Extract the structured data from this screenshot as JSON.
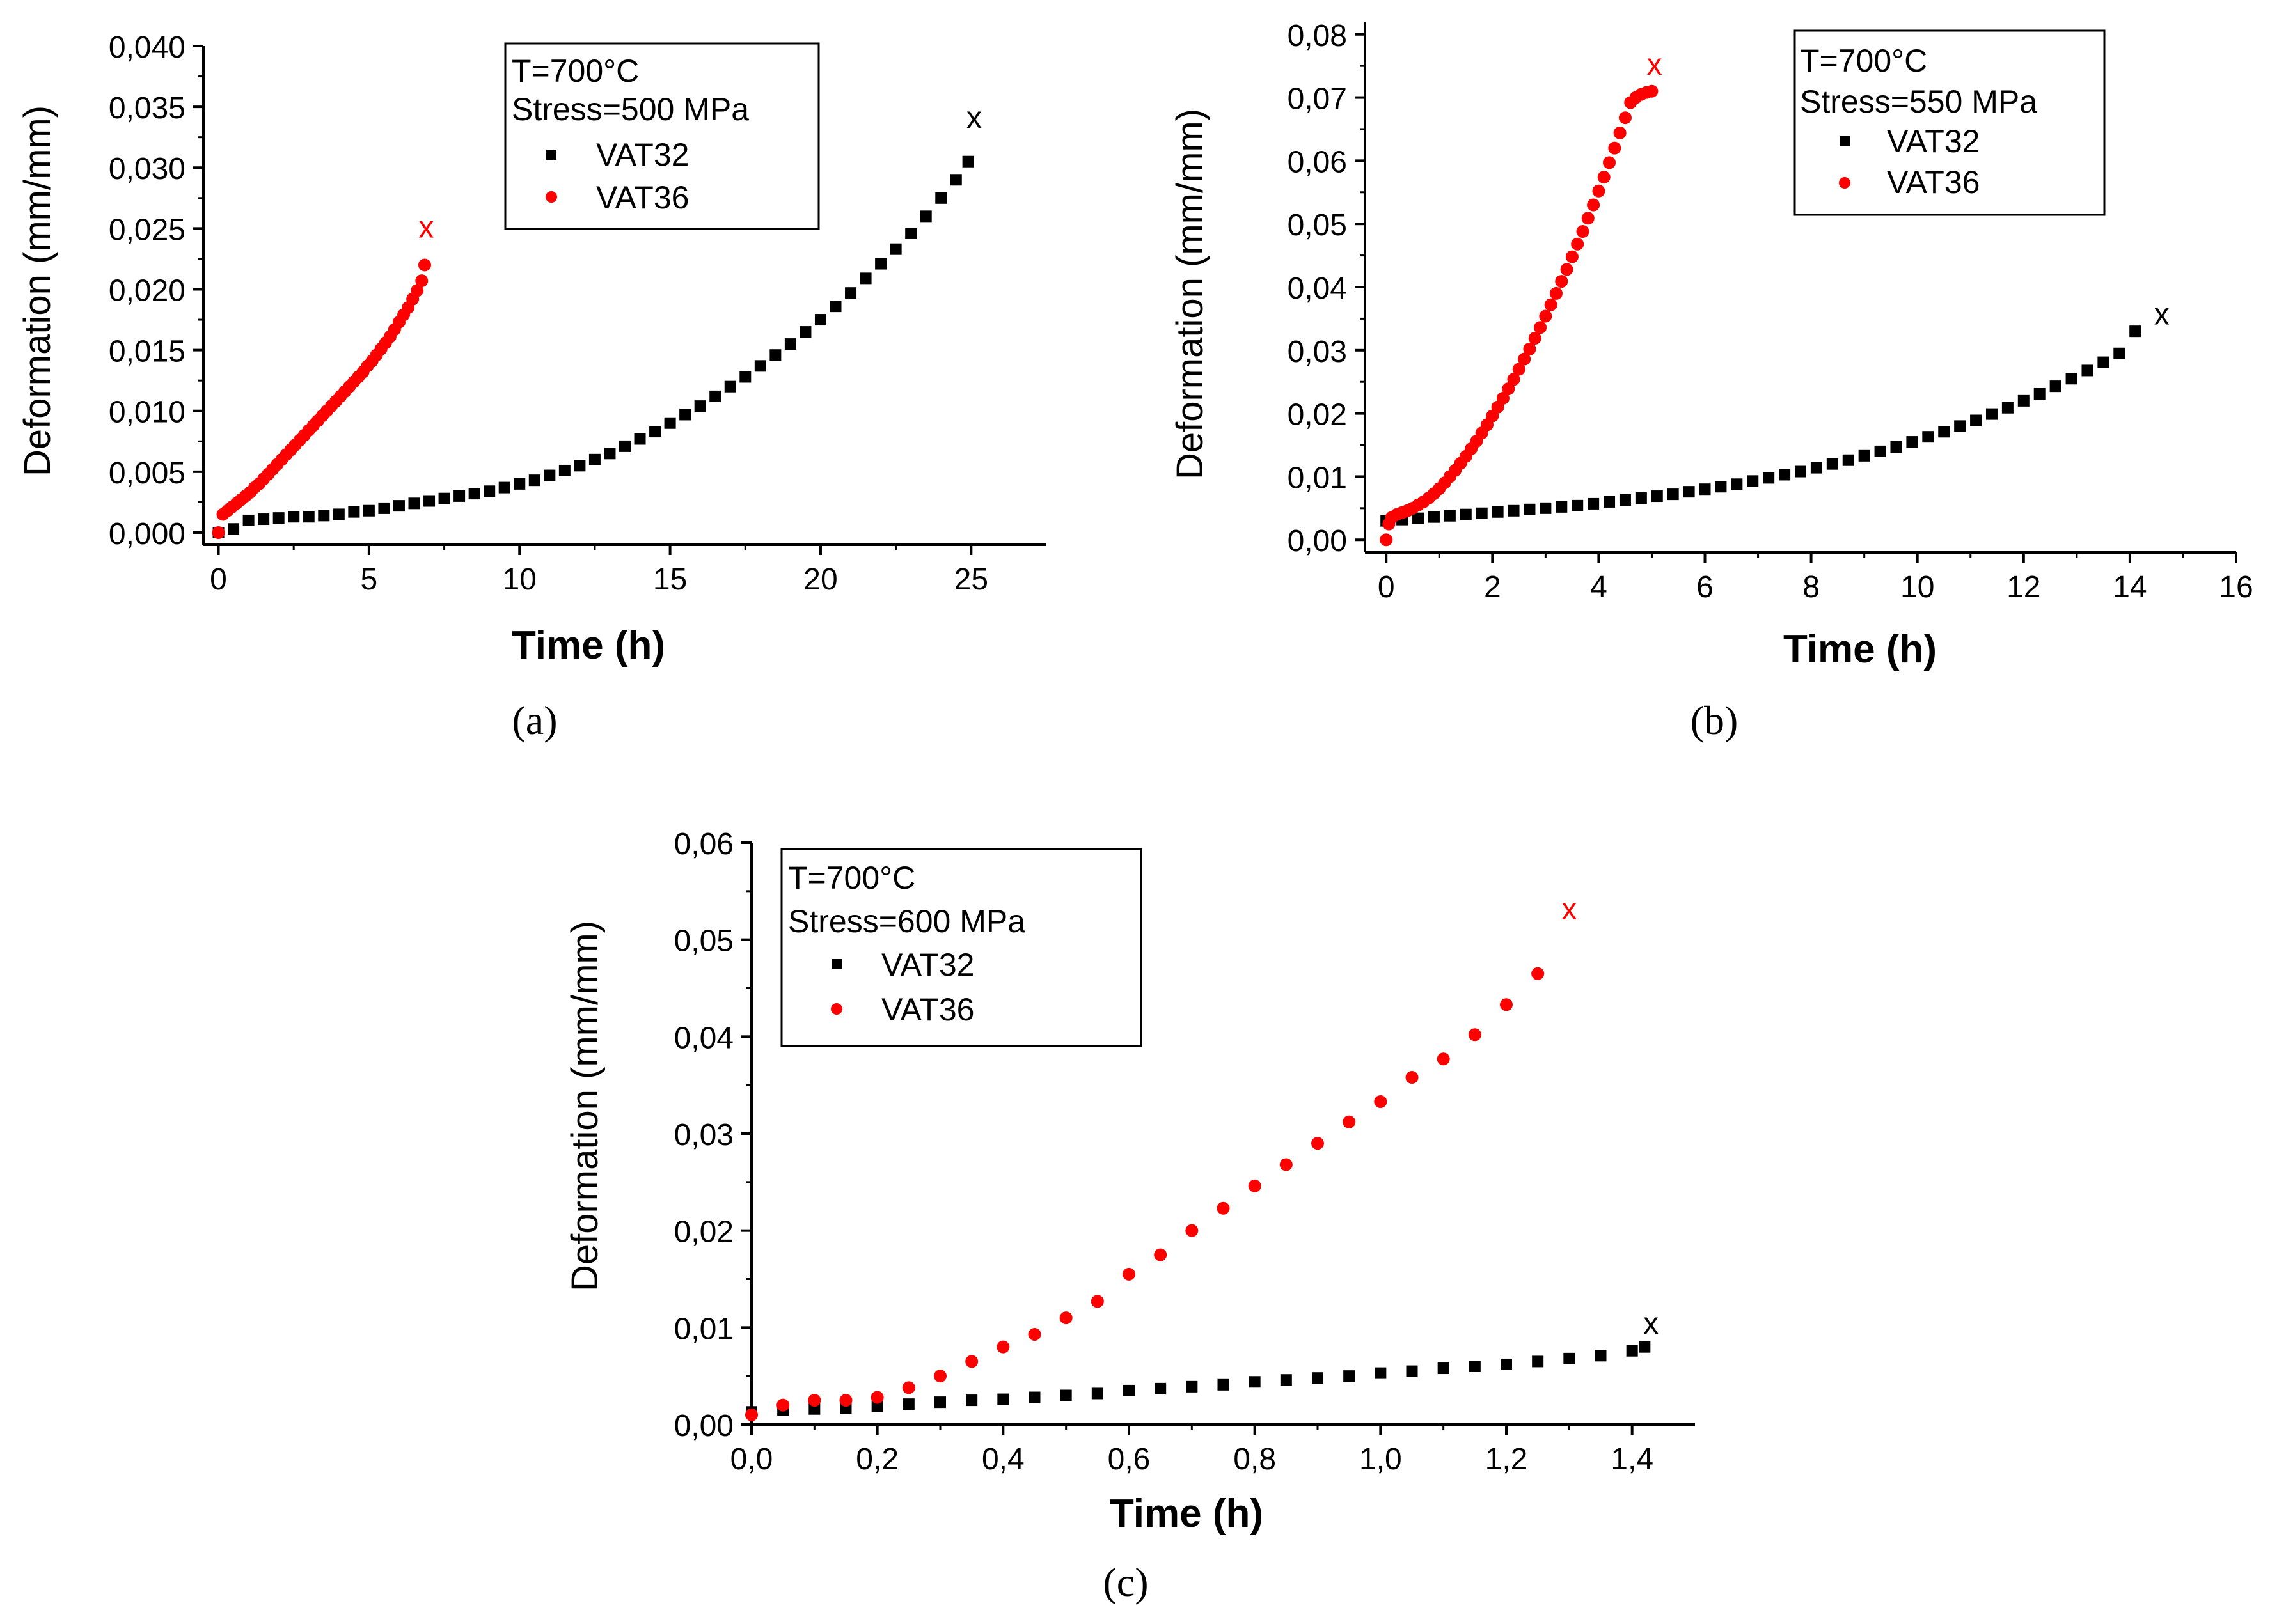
{
  "chart_data": [
    {
      "type": "scatter",
      "panel_label": "(a)",
      "xlabel": "Time (h)",
      "ylabel": "Deformation (mm/mm)",
      "xlim": [
        -0.5,
        27.5
      ],
      "ylim": [
        -0.001,
        0.04
      ],
      "xticks": [
        0,
        5,
        10,
        15,
        20,
        25
      ],
      "xtick_labels": [
        "0",
        "5",
        "10",
        "15",
        "20",
        "25"
      ],
      "yticks": [
        0.0,
        0.005,
        0.01,
        0.015,
        0.02,
        0.025,
        0.03,
        0.035,
        0.04
      ],
      "ytick_labels": [
        "0,000",
        "0,005",
        "0,010",
        "0,015",
        "0,020",
        "0,025",
        "0,030",
        "0,035",
        "0,040"
      ],
      "legend": {
        "title_lines": [
          "T=700°C",
          "Stress=500 MPa"
        ],
        "position": "top-center"
      },
      "series": [
        {
          "name": "VAT32",
          "color": "#000000",
          "marker": "square",
          "rupture": {
            "x": 25.1,
            "y": 0.034
          },
          "x": [
            0,
            0.5,
            1,
            1.5,
            2,
            2.5,
            3,
            3.5,
            4,
            4.5,
            5,
            5.5,
            6,
            6.5,
            7,
            7.5,
            8,
            8.5,
            9,
            9.5,
            10,
            10.5,
            11,
            11.5,
            12,
            12.5,
            13,
            13.5,
            14,
            14.5,
            15,
            15.5,
            16,
            16.5,
            17,
            17.5,
            18,
            18.5,
            19,
            19.5,
            20,
            20.5,
            21,
            21.5,
            22,
            22.5,
            23,
            23.5,
            24,
            24.5,
            24.9
          ],
          "y": [
            0.0,
            0.0003,
            0.001,
            0.0011,
            0.0012,
            0.0013,
            0.0013,
            0.0014,
            0.0015,
            0.0017,
            0.0018,
            0.002,
            0.0022,
            0.0024,
            0.0026,
            0.0028,
            0.003,
            0.0032,
            0.0034,
            0.0037,
            0.004,
            0.0043,
            0.0047,
            0.0051,
            0.0055,
            0.006,
            0.0065,
            0.0071,
            0.0077,
            0.0083,
            0.009,
            0.0097,
            0.0104,
            0.0112,
            0.012,
            0.0128,
            0.0137,
            0.0146,
            0.0155,
            0.0165,
            0.0175,
            0.0186,
            0.0197,
            0.0209,
            0.0221,
            0.0233,
            0.0246,
            0.026,
            0.0275,
            0.029,
            0.0305
          ]
        },
        {
          "name": "VAT36",
          "color": "#ff0000",
          "marker": "circle",
          "rupture": {
            "x": 6.9,
            "y": 0.025
          },
          "x": [
            0,
            0.15,
            0.3,
            0.45,
            0.6,
            0.75,
            0.9,
            1.05,
            1.2,
            1.35,
            1.5,
            1.65,
            1.8,
            1.95,
            2.1,
            2.25,
            2.4,
            2.55,
            2.7,
            2.85,
            3.0,
            3.15,
            3.3,
            3.45,
            3.6,
            3.75,
            3.9,
            4.05,
            4.2,
            4.35,
            4.5,
            4.65,
            4.8,
            4.95,
            5.1,
            5.25,
            5.4,
            5.55,
            5.7,
            5.85,
            6.0,
            6.15,
            6.3,
            6.45,
            6.6,
            6.75,
            6.85
          ],
          "y": [
            0.0,
            0.0015,
            0.0018,
            0.0021,
            0.0024,
            0.0027,
            0.003,
            0.0033,
            0.0037,
            0.004,
            0.0044,
            0.0048,
            0.0052,
            0.0056,
            0.006,
            0.0064,
            0.0068,
            0.0072,
            0.0076,
            0.008,
            0.0084,
            0.0088,
            0.0092,
            0.0096,
            0.01,
            0.0104,
            0.0108,
            0.0112,
            0.0116,
            0.012,
            0.0124,
            0.0128,
            0.0132,
            0.0137,
            0.0141,
            0.0146,
            0.0151,
            0.0156,
            0.0161,
            0.0167,
            0.0173,
            0.0179,
            0.0185,
            0.0192,
            0.0199,
            0.0207,
            0.022
          ]
        }
      ]
    },
    {
      "type": "scatter",
      "panel_label": "(b)",
      "xlabel": "Time (h)",
      "ylabel": "Deformation (mm/mm)",
      "xlim": [
        -0.4,
        16
      ],
      "ylim": [
        -0.002,
        0.082
      ],
      "xticks": [
        0,
        2,
        4,
        6,
        8,
        10,
        12,
        14,
        16
      ],
      "xtick_labels": [
        "0",
        "2",
        "4",
        "6",
        "8",
        "10",
        "12",
        "14",
        "16"
      ],
      "yticks": [
        0.0,
        0.01,
        0.02,
        0.03,
        0.04,
        0.05,
        0.06,
        0.07,
        0.08
      ],
      "ytick_labels": [
        "0,00",
        "0,01",
        "0,02",
        "0,03",
        "0,04",
        "0,05",
        "0,06",
        "0,07",
        "0,08"
      ],
      "legend": {
        "title_lines": [
          "T=700°C",
          "Stress=550 MPa"
        ],
        "position": "top-right"
      },
      "series": [
        {
          "name": "VAT32",
          "color": "#000000",
          "marker": "square",
          "rupture": {
            "x": 14.6,
            "y": 0.0355
          },
          "x": [
            0,
            0.3,
            0.6,
            0.9,
            1.2,
            1.5,
            1.8,
            2.1,
            2.4,
            2.7,
            3.0,
            3.3,
            3.6,
            3.9,
            4.2,
            4.5,
            4.8,
            5.1,
            5.4,
            5.7,
            6.0,
            6.3,
            6.6,
            6.9,
            7.2,
            7.5,
            7.8,
            8.1,
            8.4,
            8.7,
            9.0,
            9.3,
            9.6,
            9.9,
            10.2,
            10.5,
            10.8,
            11.1,
            11.4,
            11.7,
            12.0,
            12.3,
            12.6,
            12.9,
            13.2,
            13.5,
            13.8,
            14.1
          ],
          "y": [
            0.003,
            0.0032,
            0.0034,
            0.0036,
            0.0038,
            0.004,
            0.0042,
            0.0044,
            0.0046,
            0.0048,
            0.005,
            0.0052,
            0.0054,
            0.0057,
            0.006,
            0.0063,
            0.0066,
            0.0069,
            0.0072,
            0.0076,
            0.008,
            0.0084,
            0.0088,
            0.0093,
            0.0098,
            0.0103,
            0.0108,
            0.0114,
            0.012,
            0.0126,
            0.0133,
            0.014,
            0.0147,
            0.0155,
            0.0163,
            0.0171,
            0.018,
            0.0189,
            0.0199,
            0.0209,
            0.022,
            0.0231,
            0.0243,
            0.0255,
            0.0268,
            0.0281,
            0.0295,
            0.033
          ]
        },
        {
          "name": "VAT36",
          "color": "#ff0000",
          "marker": "circle",
          "rupture": {
            "x": 5.05,
            "y": 0.075
          },
          "x": [
            0,
            0.05,
            0.1,
            0.2,
            0.3,
            0.4,
            0.5,
            0.6,
            0.7,
            0.8,
            0.9,
            1.0,
            1.1,
            1.2,
            1.3,
            1.4,
            1.5,
            1.6,
            1.7,
            1.8,
            1.9,
            2.0,
            2.1,
            2.2,
            2.3,
            2.4,
            2.5,
            2.6,
            2.7,
            2.8,
            2.9,
            3.0,
            3.1,
            3.2,
            3.3,
            3.4,
            3.5,
            3.6,
            3.7,
            3.8,
            3.9,
            4.0,
            4.1,
            4.2,
            4.3,
            4.4,
            4.5,
            4.6,
            4.7,
            4.8,
            4.9,
            5.0
          ],
          "y": [
            0.0,
            0.0025,
            0.0035,
            0.004,
            0.0043,
            0.0046,
            0.005,
            0.0055,
            0.006,
            0.0066,
            0.0073,
            0.0081,
            0.009,
            0.01,
            0.011,
            0.0121,
            0.0132,
            0.0144,
            0.0156,
            0.0169,
            0.0182,
            0.0196,
            0.021,
            0.0224,
            0.0239,
            0.0254,
            0.027,
            0.0286,
            0.0302,
            0.0319,
            0.0336,
            0.0354,
            0.0372,
            0.039,
            0.0409,
            0.0428,
            0.0448,
            0.0468,
            0.0488,
            0.0509,
            0.053,
            0.0552,
            0.0574,
            0.0597,
            0.062,
            0.0644,
            0.0668,
            0.0692,
            0.07,
            0.0705,
            0.0708,
            0.071
          ]
        }
      ]
    },
    {
      "type": "scatter",
      "panel_label": "(c)",
      "xlabel": "Time (h)",
      "ylabel": "Deformation (mm/mm)",
      "xlim": [
        0.0,
        1.5
      ],
      "ylim": [
        0.0,
        0.06
      ],
      "xticks": [
        0.0,
        0.2,
        0.4,
        0.6,
        0.8,
        1.0,
        1.2,
        1.4
      ],
      "xtick_labels": [
        "0,0",
        "0,2",
        "0,4",
        "0,6",
        "0,8",
        "1,0",
        "1,2",
        "1,4"
      ],
      "yticks": [
        0.0,
        0.01,
        0.02,
        0.03,
        0.04,
        0.05,
        0.06
      ],
      "ytick_labels": [
        "0,00",
        "0,01",
        "0,02",
        "0,03",
        "0,04",
        "0,05",
        "0,06"
      ],
      "legend": {
        "title_lines": [
          "T=700°C",
          "Stress=600 MPa"
        ],
        "position": "top-left"
      },
      "series": [
        {
          "name": "VAT32",
          "color": "#000000",
          "marker": "square",
          "rupture": {
            "x": 1.43,
            "y": 0.0103
          },
          "x": [
            0.0,
            0.05,
            0.1,
            0.15,
            0.2,
            0.25,
            0.3,
            0.35,
            0.4,
            0.45,
            0.5,
            0.55,
            0.6,
            0.65,
            0.7,
            0.75,
            0.8,
            0.85,
            0.9,
            0.95,
            1.0,
            1.05,
            1.1,
            1.15,
            1.2,
            1.25,
            1.3,
            1.35,
            1.4,
            1.42
          ],
          "y": [
            0.0013,
            0.0015,
            0.0016,
            0.0017,
            0.0019,
            0.0021,
            0.0023,
            0.0025,
            0.0026,
            0.0028,
            0.003,
            0.0032,
            0.0035,
            0.0037,
            0.0039,
            0.0041,
            0.0044,
            0.0046,
            0.0048,
            0.005,
            0.0053,
            0.0055,
            0.0058,
            0.006,
            0.0062,
            0.0065,
            0.0068,
            0.0071,
            0.0076,
            0.008
          ]
        },
        {
          "name": "VAT36",
          "color": "#ff0000",
          "marker": "circle",
          "rupture": {
            "x": 1.3,
            "y": 0.053
          },
          "x": [
            0.0,
            0.05,
            0.1,
            0.15,
            0.2,
            0.25,
            0.3,
            0.35,
            0.4,
            0.45,
            0.5,
            0.55,
            0.6,
            0.65,
            0.7,
            0.75,
            0.8,
            0.85,
            0.9,
            0.95,
            1.0,
            1.05,
            1.1,
            1.15,
            1.2,
            1.25
          ],
          "y": [
            0.001,
            0.002,
            0.0025,
            0.0025,
            0.0028,
            0.0038,
            0.005,
            0.0065,
            0.008,
            0.0093,
            0.011,
            0.0127,
            0.0155,
            0.0175,
            0.02,
            0.0223,
            0.0246,
            0.0268,
            0.029,
            0.0312,
            0.0333,
            0.0358,
            0.0377,
            0.0402,
            0.0433,
            0.0465
          ]
        }
      ]
    }
  ]
}
